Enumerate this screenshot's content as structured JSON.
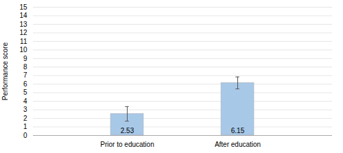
{
  "chart_data": {
    "type": "bar",
    "categories": [
      "Prior to education",
      "After education"
    ],
    "values": [
      2.53,
      6.15
    ],
    "errors": [
      0.85,
      0.7
    ],
    "color": "#a8c8e8",
    "ylabel": "Performance score",
    "ylim": [
      0,
      15
    ],
    "yticks": [
      0,
      1,
      2,
      3,
      4,
      5,
      6,
      7,
      8,
      9,
      10,
      11,
      12,
      13,
      14,
      15
    ],
    "grid": true,
    "data_labels": true
  }
}
